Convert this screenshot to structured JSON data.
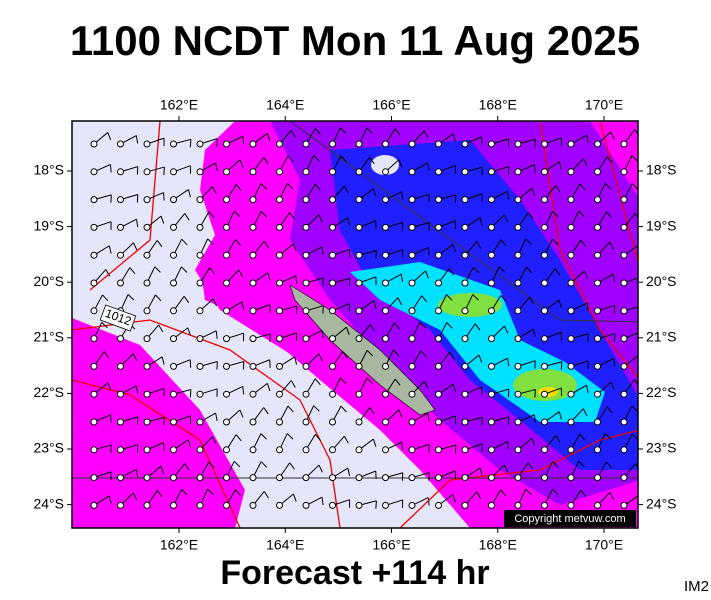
{
  "header": {
    "title": "1100 NCDT Mon 11 Aug 2025"
  },
  "map": {
    "lon_labels": [
      "162°E",
      "164°E",
      "166°E",
      "168°E",
      "170°E"
    ],
    "lat_labels": [
      "18°S",
      "19°S",
      "20°S",
      "21°S",
      "22°S",
      "23°S",
      "24°S"
    ],
    "isobar_label": "1012",
    "copyright": "Copyright metvuw.com"
  },
  "footer": {
    "forecast": "Forecast +114 hr",
    "code": "IM2"
  }
}
